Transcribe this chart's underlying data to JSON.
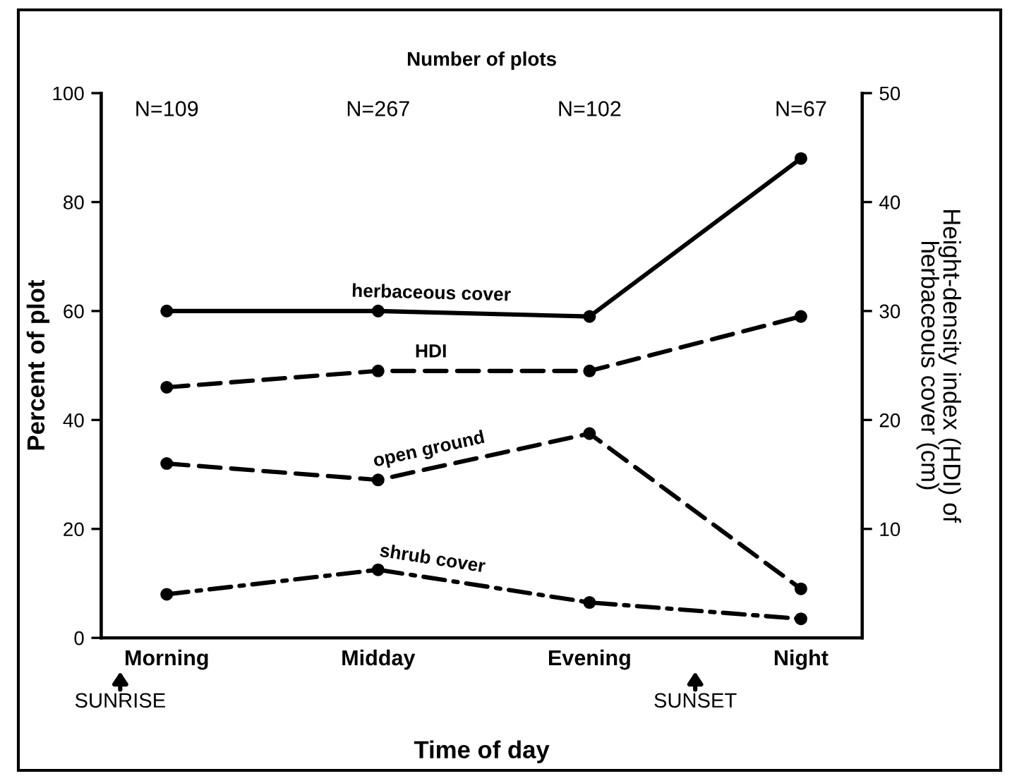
{
  "chart_data": {
    "type": "line",
    "title": "Number of plots",
    "xlabel": "Time of day",
    "ylabel": "Percent of plot",
    "y2label": "Height-density index (HDI) of\nherbaceous cover (cm)",
    "categories": [
      "Morning",
      "Midday",
      "Evening",
      "Night"
    ],
    "series": [
      {
        "name": "herbaceous cover",
        "color": "#000000",
        "values": [
          60,
          60,
          59,
          88
        ],
        "line_style": "solid"
      },
      {
        "name": "HDI",
        "color": "#000000",
        "values": [
          23,
          24.5,
          24.5,
          29.5
        ],
        "axis": "y2",
        "line_style": "dashed"
      },
      {
        "name": "open ground",
        "color": "#000000",
        "values": [
          32,
          29,
          37.5,
          9
        ],
        "line_style": "dashed"
      },
      {
        "name": "shrub cover",
        "color": "#000000",
        "values": [
          8,
          12.5,
          6.5,
          3.5
        ],
        "line_style": "dashdot"
      }
    ],
    "ylim": [
      0,
      100
    ],
    "yticks": [
      0,
      20,
      40,
      60,
      80,
      100
    ],
    "y2lim": [
      0,
      50
    ],
    "y2ticks": [
      10,
      20,
      30,
      40,
      50
    ],
    "marker": "circle",
    "annotations": [
      "N=109",
      "N=267",
      "N=102",
      "N=67",
      "SUNRISE",
      "SUNSET"
    ]
  }
}
